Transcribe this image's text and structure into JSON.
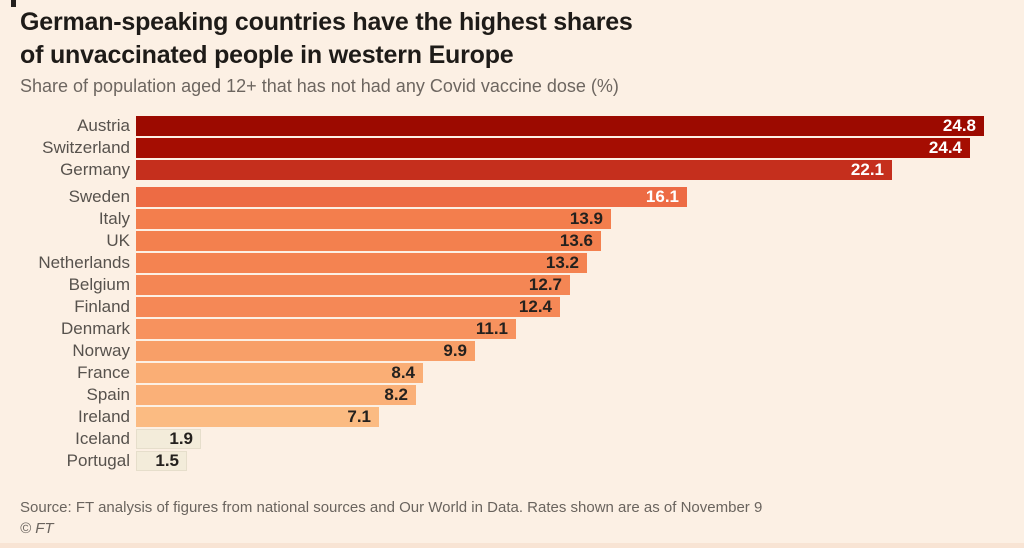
{
  "header": {
    "title_line1": "German-speaking countries have the highest shares",
    "title_line2": "of unvaccinated people in western Europe",
    "subtitle": "Share of population aged 12+ that has not had any Covid vaccine dose (%)"
  },
  "chart_data": {
    "type": "bar",
    "orientation": "horizontal",
    "unit": "%",
    "xlim": [
      0,
      25
    ],
    "grid": false,
    "legend": false,
    "value_labels": "inside-end",
    "categories": [
      "Austria",
      "Switzerland",
      "Germany",
      "Sweden",
      "Italy",
      "UK",
      "Netherlands",
      "Belgium",
      "Finland",
      "Denmark",
      "Norway",
      "France",
      "Spain",
      "Ireland",
      "Iceland",
      "Portugal"
    ],
    "values": [
      24.8,
      24.4,
      22.1,
      16.1,
      13.9,
      13.6,
      13.2,
      12.7,
      12.4,
      11.1,
      9.9,
      8.4,
      8.2,
      7.1,
      1.9,
      1.5
    ],
    "rows": [
      {
        "label": "Austria",
        "value": 24.8,
        "bar_color": "#9C0A00",
        "value_color": "#FFFFFF"
      },
      {
        "label": "Switzerland",
        "value": 24.4,
        "bar_color": "#A50D02",
        "value_color": "#FFFFFF"
      },
      {
        "label": "Germany",
        "value": 22.1,
        "bar_color": "#C52F1D",
        "value_color": "#FFFFFF"
      },
      {
        "label": "Sweden",
        "value": 16.1,
        "bar_color": "#ED6B44",
        "value_color": "#FFFFFF",
        "gap_before": true
      },
      {
        "label": "Italy",
        "value": 13.9,
        "bar_color": "#F37E4D",
        "value_color": "#24211E"
      },
      {
        "label": "UK",
        "value": 13.6,
        "bar_color": "#F3804E",
        "value_color": "#24211E"
      },
      {
        "label": "Netherlands",
        "value": 13.2,
        "bar_color": "#F48351",
        "value_color": "#24211E"
      },
      {
        "label": "Belgium",
        "value": 12.7,
        "bar_color": "#F48654",
        "value_color": "#24211E"
      },
      {
        "label": "Finland",
        "value": 12.4,
        "bar_color": "#F58856",
        "value_color": "#24211E"
      },
      {
        "label": "Denmark",
        "value": 11.1,
        "bar_color": "#F7925E",
        "value_color": "#24211E"
      },
      {
        "label": "Norway",
        "value": 9.9,
        "bar_color": "#F89F68",
        "value_color": "#24211E"
      },
      {
        "label": "France",
        "value": 8.4,
        "bar_color": "#FAAE75",
        "value_color": "#24211E"
      },
      {
        "label": "Spain",
        "value": 8.2,
        "bar_color": "#FAB078",
        "value_color": "#24211E"
      },
      {
        "label": "Ireland",
        "value": 7.1,
        "bar_color": "#FBBB82",
        "value_color": "#24211E"
      },
      {
        "label": "Iceland",
        "value": 1.9,
        "bar_color": "#F3ECDA",
        "value_color": "#24211E",
        "border_color": "#E6DECB"
      },
      {
        "label": "Portugal",
        "value": 1.5,
        "bar_color": "#F3ECDA",
        "value_color": "#24211E",
        "border_color": "#E6DECB"
      }
    ]
  },
  "footer": {
    "source": "Source: FT analysis of figures from national sources and Our World in Data. Rates shown are as of November 9",
    "copyright": "© FT"
  },
  "colors": {
    "background": "#FCF0E4",
    "title": "#1E1B18",
    "subtitle": "#6D6660",
    "country_label": "#57524D",
    "footer": "#6A645E"
  }
}
